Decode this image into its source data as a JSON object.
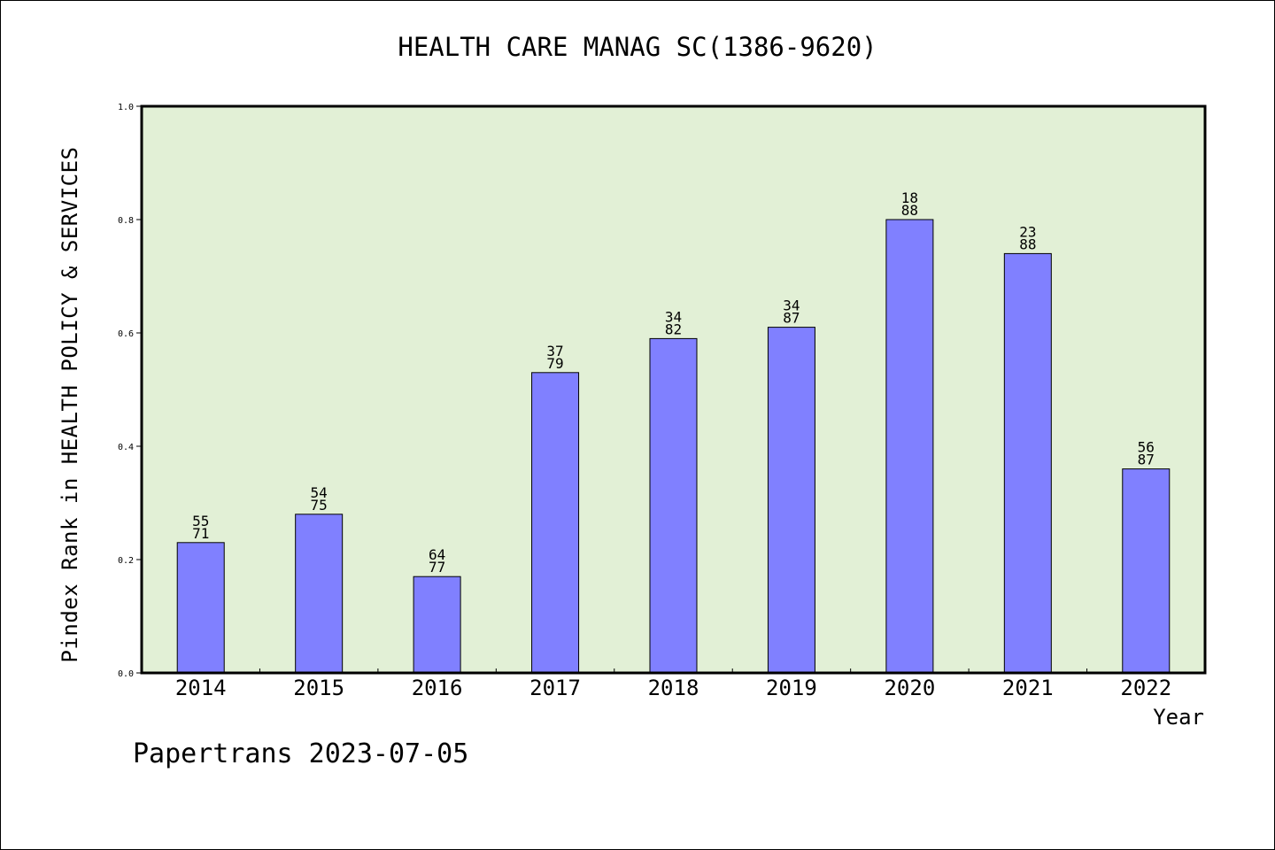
{
  "chart_data": {
    "type": "bar",
    "title": "HEALTH CARE MANAG SC(1386-9620)",
    "xlabel": "Year",
    "ylabel": "Pindex Rank in HEALTH POLICY & SERVICES",
    "categories": [
      "2014",
      "2015",
      "2016",
      "2017",
      "2018",
      "2019",
      "2020",
      "2021",
      "2022"
    ],
    "values": [
      0.23,
      0.28,
      0.17,
      0.53,
      0.59,
      0.61,
      0.8,
      0.74,
      0.36
    ],
    "bar_labels": [
      {
        "rank": "55",
        "total": "71"
      },
      {
        "rank": "54",
        "total": "75"
      },
      {
        "rank": "64",
        "total": "77"
      },
      {
        "rank": "37",
        "total": "79"
      },
      {
        "rank": "34",
        "total": "82"
      },
      {
        "rank": "34",
        "total": "87"
      },
      {
        "rank": "18",
        "total": "88"
      },
      {
        "rank": "23",
        "total": "88"
      },
      {
        "rank": "56",
        "total": "87"
      }
    ],
    "ylim": [
      0.0,
      1.0
    ],
    "yticks": [
      "0.0",
      "0.2",
      "0.4",
      "0.6",
      "0.8",
      "1.0"
    ],
    "grid": false,
    "colors": {
      "bar": "#8080ff",
      "plot_bg": "#e2f0d6"
    }
  },
  "footer": {
    "credit": "Papertrans 2023-07-05"
  }
}
